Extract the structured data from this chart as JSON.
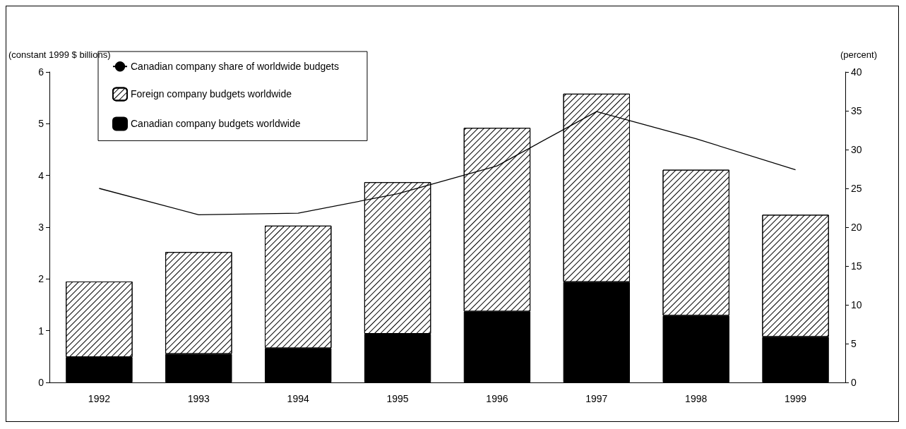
{
  "chart_data": {
    "type": "bar",
    "stacked": true,
    "ylabel": "(constant 1999 $ billions)",
    "y2label": "(percent)",
    "categories": [
      "1992",
      "1993",
      "1994",
      "1995",
      "1996",
      "1997",
      "1998",
      "1999"
    ],
    "series": [
      {
        "name": "Canadian company budgets worldwide",
        "color": "#000000",
        "values": [
          0.49,
          0.55,
          0.66,
          0.94,
          1.37,
          1.94,
          1.29,
          0.88
        ]
      },
      {
        "name": "Foreign company budgets worldwide",
        "color": "#ffffff",
        "values": [
          1.46,
          1.97,
          2.37,
          2.93,
          3.55,
          3.64,
          2.82,
          2.36
        ]
      },
      {
        "name": "Canadian company share of worldwide budgets",
        "type": "line",
        "axis": "y2",
        "color": "#000000",
        "values": [
          25.0,
          21.6,
          21.8,
          24.3,
          27.9,
          34.9,
          31.4,
          27.4
        ]
      }
    ],
    "ylim": [
      0,
      6
    ],
    "yticks": [
      0,
      1,
      2,
      3,
      4,
      5,
      6
    ],
    "y2lim": [
      0,
      40
    ],
    "y2ticks": [
      0,
      5,
      10,
      15,
      20,
      25,
      30,
      35,
      40
    ],
    "grid": false,
    "legend": "top left",
    "marker": "none",
    "line_style": "solid"
  }
}
